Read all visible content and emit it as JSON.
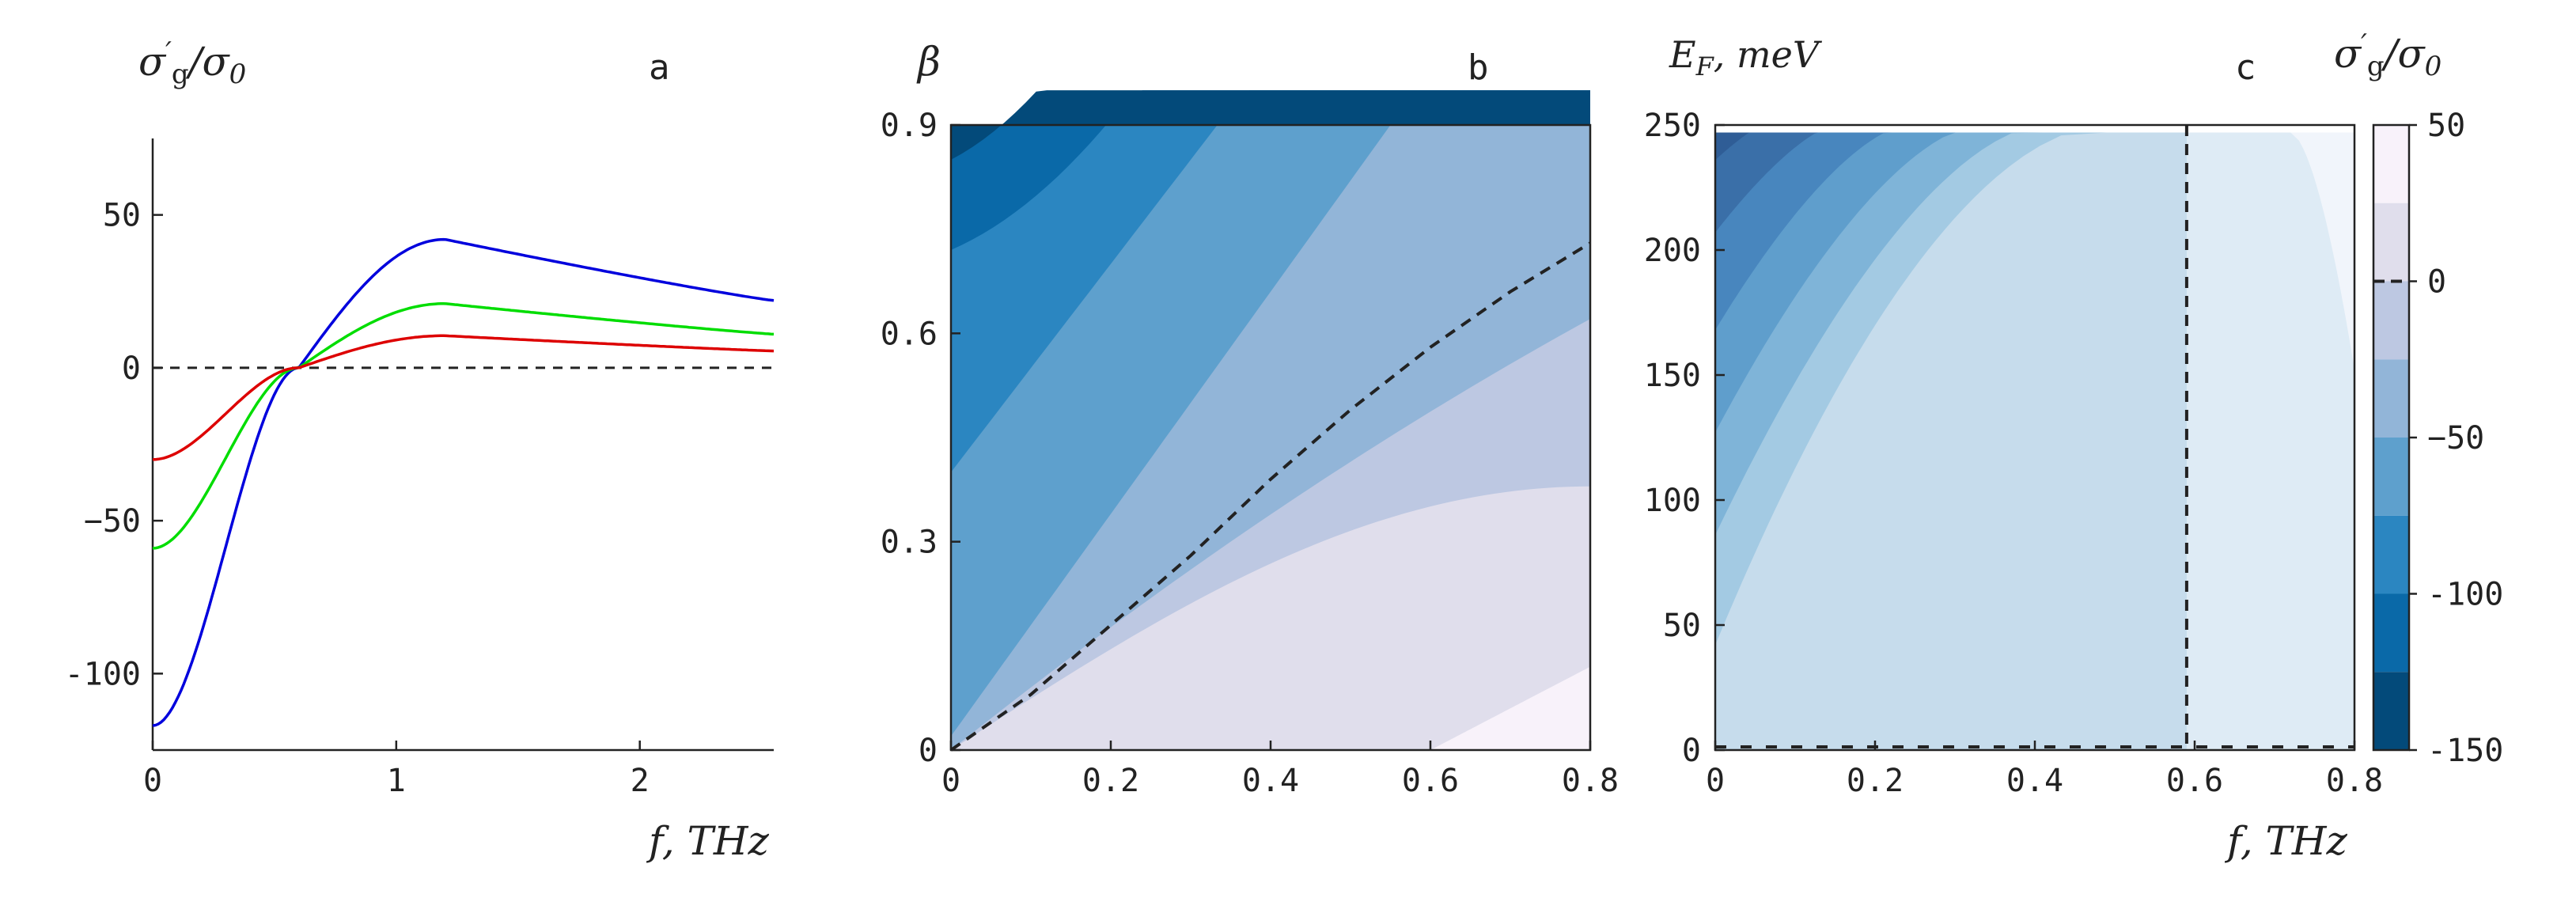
{
  "chart_data": [
    {
      "type": "line",
      "panel_label": "a",
      "ylabel": "σ′g/σ0",
      "xlabel": "f, THz",
      "xlim": [
        0,
        2.55
      ],
      "ylim": [
        -125,
        75
      ],
      "x_ticks": [
        "0",
        "1",
        "2"
      ],
      "y_ticks": [
        "50",
        "0",
        "−50",
        "-100"
      ],
      "reference_line": {
        "y": 0,
        "style": "dashed"
      },
      "series": [
        {
          "color": "#0000dd",
          "values_at_f0": -117,
          "zero_crossing_f": 0.6,
          "peak_f": 1.2,
          "peak_value": 42,
          "value_at_fmax": 22
        },
        {
          "color": "#00dd00",
          "values_at_f0": -59,
          "zero_crossing_f": 0.6,
          "peak_f": 1.2,
          "peak_value": 21,
          "value_at_fmax": 11
        },
        {
          "color": "#dd0000",
          "values_at_f0": -30,
          "zero_crossing_f": 0.6,
          "peak_f": 1.2,
          "peak_value": 10.5,
          "value_at_fmax": 5.5
        }
      ]
    },
    {
      "type": "heatmap",
      "panel_label": "b",
      "ylabel": "β",
      "xlabel": "",
      "xlim": [
        0,
        0.8
      ],
      "ylim": [
        0,
        0.9
      ],
      "x_ticks": [
        "0",
        "0.2",
        "0.4",
        "0.6",
        "0.8"
      ],
      "y_ticks": [
        "0",
        "0.3",
        "0.6",
        "0.9"
      ],
      "zero_contour": [
        [
          0,
          0
        ],
        [
          0.1,
          0.08
        ],
        [
          0.2,
          0.18
        ],
        [
          0.3,
          0.28
        ],
        [
          0.4,
          0.39
        ],
        [
          0.5,
          0.49
        ],
        [
          0.6,
          0.58
        ],
        [
          0.7,
          0.66
        ],
        [
          0.8,
          0.73
        ]
      ]
    },
    {
      "type": "heatmap",
      "panel_label": "c",
      "ylabel": "EF, meV",
      "xlabel": "f, THz",
      "xlim": [
        0,
        0.8
      ],
      "ylim": [
        0,
        250
      ],
      "x_ticks": [
        "0",
        "0.2",
        "0.4",
        "0.6",
        "0.8"
      ],
      "y_ticks": [
        "0",
        "50",
        "100",
        "150",
        "200",
        "250"
      ],
      "zero_contour_f": 0.59,
      "colorbar": {
        "label": "σ′g/σ0",
        "ticks": [
          "50",
          "0",
          "−50",
          "-100",
          "-150"
        ],
        "range": [
          -150,
          50
        ],
        "levels": [
          {
            "from": 25,
            "to": 50,
            "color": "#f8f2fa"
          },
          {
            "from": 0,
            "to": 25,
            "color": "#e0deec"
          },
          {
            "from": -25,
            "to": 0,
            "color": "#bdc8e2"
          },
          {
            "from": -50,
            "to": -25,
            "color": "#92b5d8"
          },
          {
            "from": -75,
            "to": -50,
            "color": "#5ea0cd"
          },
          {
            "from": -100,
            "to": -75,
            "color": "#2b86c1"
          },
          {
            "from": -125,
            "to": -100,
            "color": "#0a69a8"
          },
          {
            "from": -150,
            "to": -125,
            "color": "#034a7a"
          }
        ]
      }
    }
  ]
}
